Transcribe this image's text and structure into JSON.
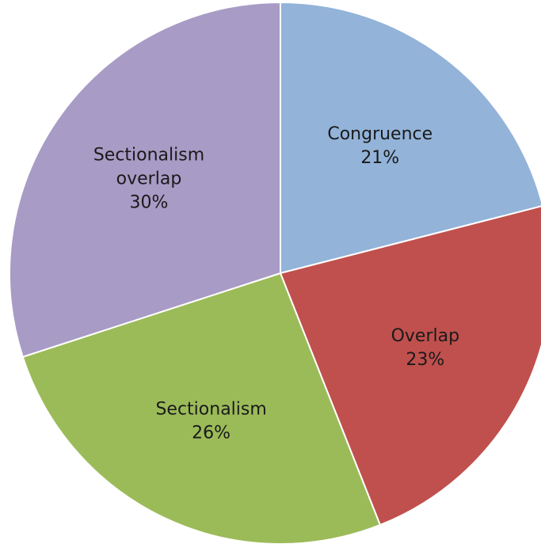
{
  "chart_data": {
    "type": "pie",
    "title": "",
    "slices": [
      {
        "category": "Congruence",
        "label_lines": [
          "Congruence"
        ],
        "value": 21,
        "percent_label": "21%",
        "color": "#93b3d9"
      },
      {
        "category": "Overlap",
        "label_lines": [
          "Overlap"
        ],
        "value": 23,
        "percent_label": "23%",
        "color": "#c0504d"
      },
      {
        "category": "Sectionalism",
        "label_lines": [
          "Sectionalism"
        ],
        "value": 26,
        "percent_label": "26%",
        "color": "#9bbb59"
      },
      {
        "category": "Sectionalism overlap",
        "label_lines": [
          "Sectionalism",
          "overlap"
        ],
        "value": 30,
        "percent_label": "30%",
        "color": "#a89bc5"
      }
    ],
    "start_angle_deg": 0,
    "direction": "clockwise",
    "legend": "none",
    "data_labels": "inside"
  }
}
